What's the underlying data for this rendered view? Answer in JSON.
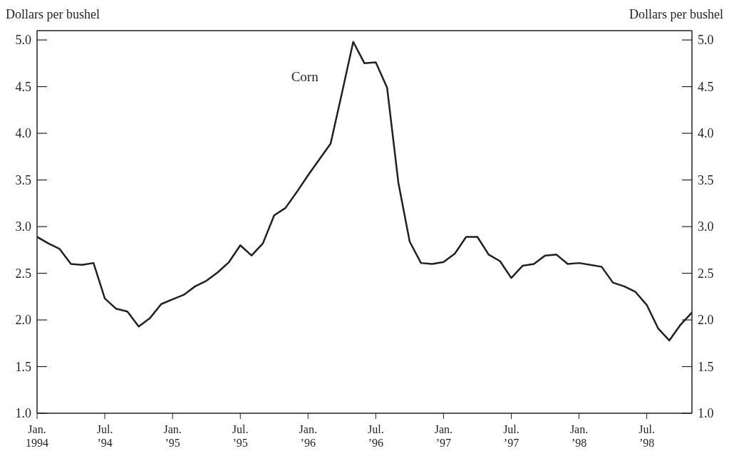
{
  "chart_data": {
    "type": "line",
    "ylabel": "Dollars per bushel",
    "y2label": "Dollars per bushel",
    "x": [
      "1994-01",
      "1994-02",
      "1994-03",
      "1994-04",
      "1994-05",
      "1994-06",
      "1994-07",
      "1994-08",
      "1994-09",
      "1994-10",
      "1994-11",
      "1994-12",
      "1995-01",
      "1995-02",
      "1995-03",
      "1995-04",
      "1995-05",
      "1995-06",
      "1995-07",
      "1995-08",
      "1995-09",
      "1995-10",
      "1995-11",
      "1995-12",
      "1996-01",
      "1996-02",
      "1996-03",
      "1996-04",
      "1996-05",
      "1996-06",
      "1996-07",
      "1996-08",
      "1996-09",
      "1996-10",
      "1996-11",
      "1996-12",
      "1997-01",
      "1997-02",
      "1997-03",
      "1997-04",
      "1997-05",
      "1997-06",
      "1997-07",
      "1997-08",
      "1997-09",
      "1997-10",
      "1997-11",
      "1997-12",
      "1998-01",
      "1998-02",
      "1998-03",
      "1998-04",
      "1998-05",
      "1998-06",
      "1998-07",
      "1998-08",
      "1998-09",
      "1998-10",
      "1998-11"
    ],
    "series": [
      {
        "name": "Corn",
        "color": "#231f20",
        "values": [
          2.89,
          2.82,
          2.76,
          2.6,
          2.59,
          2.61,
          2.23,
          2.12,
          2.09,
          1.93,
          2.02,
          2.17,
          2.22,
          2.27,
          2.36,
          2.42,
          2.51,
          2.62,
          2.8,
          2.69,
          2.82,
          3.12,
          3.2,
          3.37,
          3.55,
          3.72,
          3.89,
          4.43,
          4.98,
          4.75,
          4.76,
          4.49,
          3.47,
          2.84,
          2.61,
          2.6,
          2.62,
          2.71,
          2.89,
          2.89,
          2.7,
          2.63,
          2.45,
          2.58,
          2.6,
          2.69,
          2.7,
          2.6,
          2.61,
          2.59,
          2.57,
          2.4,
          2.36,
          2.3,
          2.16,
          1.91,
          1.78,
          1.95,
          2.08
        ]
      }
    ],
    "xlim": [
      "1994-01",
      "1998-11"
    ],
    "xticks": [
      {
        "value": "1994-01",
        "label": "Jan.\n1994"
      },
      {
        "value": "1994-07",
        "label": "Jul.\n’94"
      },
      {
        "value": "1995-01",
        "label": "Jan.\n’95"
      },
      {
        "value": "1995-07",
        "label": "Jul.\n’95"
      },
      {
        "value": "1996-01",
        "label": "Jan.\n’96"
      },
      {
        "value": "1996-07",
        "label": "Jul.\n’96"
      },
      {
        "value": "1997-01",
        "label": "Jan.\n’97"
      },
      {
        "value": "1997-07",
        "label": "Jul.\n’97"
      },
      {
        "value": "1998-01",
        "label": "Jan.\n’98"
      },
      {
        "value": "1998-07",
        "label": "Jul.\n’98"
      }
    ],
    "ylim": [
      1,
      5.1
    ],
    "yticks": [
      {
        "value": 1,
        "label": "1.0"
      },
      {
        "value": 1.5,
        "label": "1.5"
      },
      {
        "value": 2,
        "label": "2.0"
      },
      {
        "value": 2.5,
        "label": "2.5"
      },
      {
        "value": 3,
        "label": "3.0"
      },
      {
        "value": 3.5,
        "label": "3.5"
      },
      {
        "value": 4,
        "label": "4.0"
      },
      {
        "value": 4.5,
        "label": "4.5"
      },
      {
        "value": 5,
        "label": "5.0"
      }
    ],
    "y2lim": [
      1,
      5.1
    ],
    "y2ticks": [
      {
        "value": 1,
        "label": "1.0"
      },
      {
        "value": 1.5,
        "label": "1.5"
      },
      {
        "value": 2,
        "label": "2.0"
      },
      {
        "value": 2.5,
        "label": "2.5"
      },
      {
        "value": 3,
        "label": "3.0"
      },
      {
        "value": 3.5,
        "label": "3.5"
      },
      {
        "value": 4,
        "label": "4.0"
      },
      {
        "value": 4.5,
        "label": "4.5"
      },
      {
        "value": 5,
        "label": "5.0"
      }
    ],
    "grid": false,
    "legend": false,
    "marker": "none",
    "line_style": "solid"
  }
}
